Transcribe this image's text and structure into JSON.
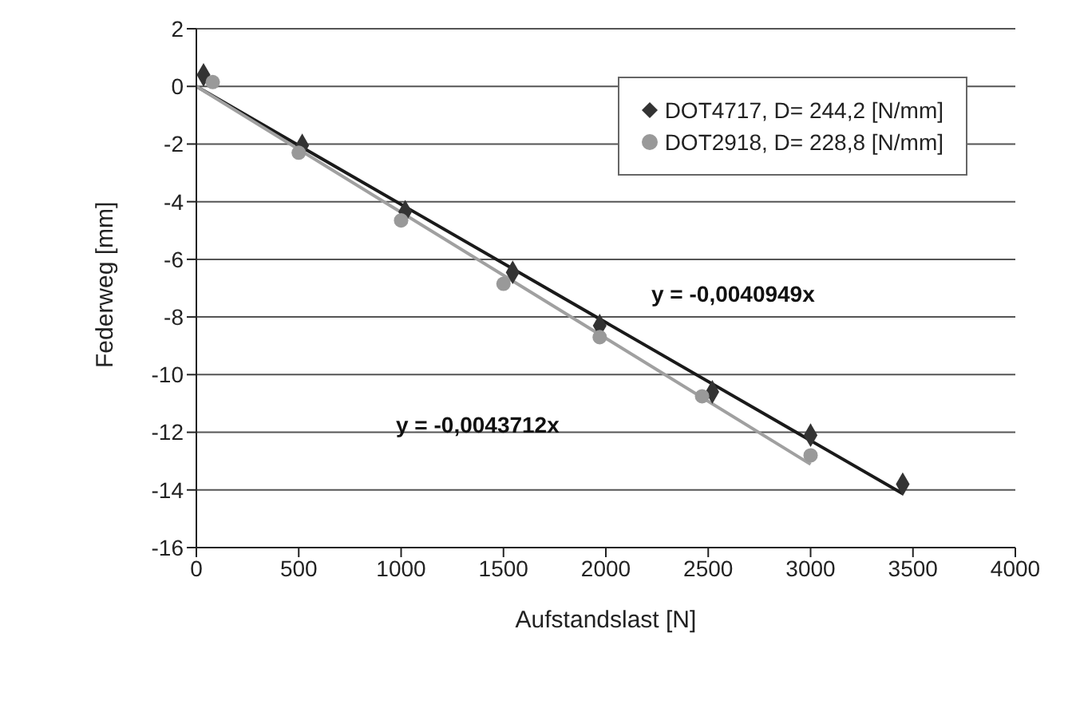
{
  "chart_data": {
    "type": "scatter",
    "xlabel": "Aufstandslast [N]",
    "ylabel": "Federweg [mm]",
    "xlim": [
      0,
      4000
    ],
    "xticks": [
      0,
      500,
      1000,
      1500,
      2000,
      2500,
      3000,
      3500,
      4000
    ],
    "ylim": [
      -16,
      2
    ],
    "yticks": [
      -16,
      -14,
      -12,
      -10,
      -8,
      -6,
      -4,
      -2,
      0,
      2
    ],
    "grid": "y",
    "legend": "top right",
    "series": [
      {
        "name": "DOT4717, D= 244,2 [N/mm]",
        "color": "#333333",
        "marker": "diamond",
        "x": [
          35,
          517,
          1020,
          1545,
          1970,
          2520,
          3000,
          3450
        ],
        "values": [
          0.4,
          -2.05,
          -4.35,
          -6.45,
          -8.3,
          -10.6,
          -12.1,
          -13.8
        ]
      },
      {
        "name": "DOT2918, D= 228,8 [N/mm]",
        "color": "#999999",
        "marker": "circle",
        "x": [
          80,
          500,
          1000,
          1500,
          1970,
          2470,
          3000
        ],
        "values": [
          0.15,
          -2.3,
          -4.65,
          -6.85,
          -8.7,
          -10.75,
          -12.8
        ]
      },
      {
        "type": "line",
        "color": "#1a1a1a",
        "x": [
          0,
          3450
        ],
        "values": [
          0,
          -14.13
        ]
      },
      {
        "type": "line",
        "color": "#a0a0a0",
        "x": [
          0,
          3000
        ],
        "values": [
          0,
          -13.11
        ]
      }
    ],
    "annotations": [
      "y = -0,0040949x",
      "y = -0,0043712x"
    ]
  }
}
